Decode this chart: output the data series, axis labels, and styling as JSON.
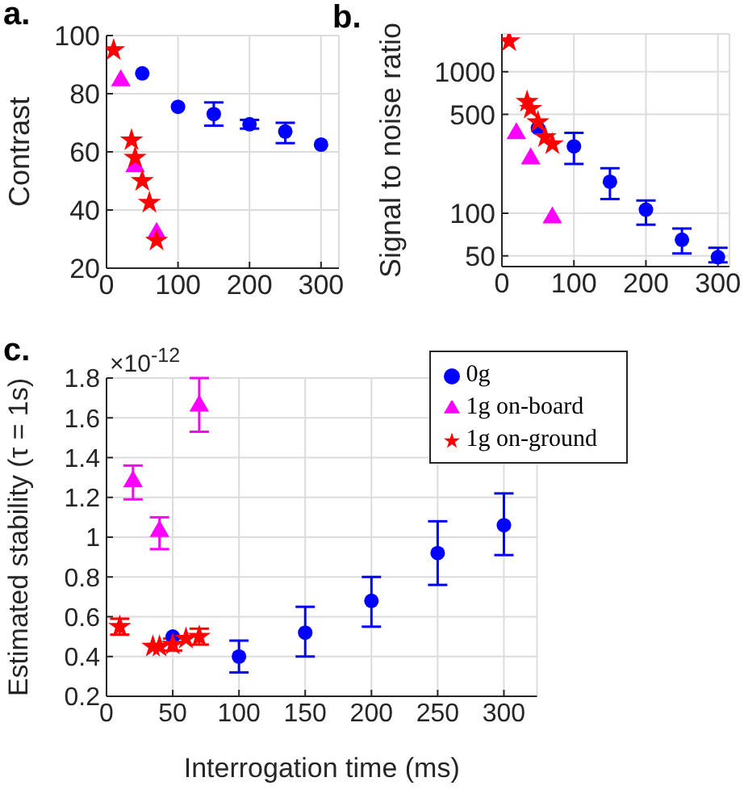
{
  "chart_data": [
    {
      "type": "scatter",
      "title": "a.",
      "ylabel": "Contrast",
      "xlim": [
        0,
        325
      ],
      "xticks": [
        0,
        100,
        200,
        300
      ],
      "ylim": [
        20,
        100
      ],
      "yticks": [
        20,
        40,
        60,
        80,
        100
      ],
      "grid": true,
      "legend": false,
      "series": [
        {
          "color": "#0000ff",
          "marker": "circle",
          "x": [
            50,
            100,
            150,
            200,
            250,
            300
          ],
          "values": [
            87,
            75.5,
            73,
            69.5,
            67,
            62.5
          ],
          "errors": [
            null,
            null,
            [
              69,
              77
            ],
            [
              68,
              71
            ],
            [
              63,
              70
            ],
            null
          ]
        },
        {
          "color": "#ff00ff",
          "marker": "triangle",
          "x": [
            20,
            40,
            70
          ],
          "values": [
            84.5,
            55,
            32
          ]
        },
        {
          "color": "#ff0000",
          "marker": "star",
          "x": [
            10,
            35,
            40,
            50,
            60,
            70
          ],
          "values": [
            95,
            64,
            58,
            50,
            42.5,
            29.5
          ]
        }
      ]
    },
    {
      "type": "scatter",
      "title": "b.",
      "ylabel": "Signal to noise ratio",
      "xlim": [
        0,
        316
      ],
      "xticks": [
        0,
        100,
        200,
        300
      ],
      "ylim": [
        42,
        1850
      ],
      "yticks": [
        50,
        100,
        500,
        1000
      ],
      "log": "y",
      "grid": true,
      "legend": false,
      "series": [
        {
          "color": "#0000ff",
          "marker": "circle",
          "x": [
            50,
            100,
            150,
            200,
            250,
            300
          ],
          "values": [
            400,
            297,
            167,
            106,
            65,
            49
          ],
          "errors": [
            null,
            [
              223,
              370
            ],
            [
              126,
              208
            ],
            [
              83,
              123
            ],
            [
              52,
              78
            ],
            [
              45,
              57
            ]
          ]
        },
        {
          "color": "#ff00ff",
          "marker": "triangle",
          "x": [
            20,
            40,
            70
          ],
          "values": [
            366,
            243,
            93
          ]
        },
        {
          "color": "#ff0000",
          "marker": "star",
          "x": [
            10,
            35,
            40,
            50,
            60,
            70
          ],
          "values": [
            1645,
            614,
            548,
            440,
            345,
            308
          ]
        }
      ]
    },
    {
      "type": "scatter",
      "title": "c.",
      "xlabel": "Interrogation time (ms)",
      "ylabel": "Estimated stability (τ = 1s)",
      "annotations": [
        "×10$^{-12}$"
      ],
      "xlim": [
        0,
        325
      ],
      "xticks": [
        0,
        50,
        100,
        150,
        200,
        250,
        300
      ],
      "ylim": [
        0.2,
        1.8
      ],
      "yticks": [
        {
          "value": 0.2,
          "label": "0.2"
        },
        {
          "value": 0.4,
          "label": "0.4"
        },
        {
          "value": 0.6,
          "label": "0.6"
        },
        {
          "value": 0.8,
          "label": "0.8"
        },
        1,
        {
          "value": 1.2,
          "label": "1.2"
        },
        {
          "value": 1.4,
          "label": "1.4"
        },
        {
          "value": 1.6,
          "label": "1.6"
        },
        {
          "value": 1.8,
          "label": "1.8"
        }
      ],
      "grid": true,
      "legend": "top right",
      "series": [
        {
          "name": "0g",
          "color": "#0000ff",
          "marker": "circle",
          "x": [
            50,
            100,
            150,
            200,
            250,
            300
          ],
          "values": [
            0.5,
            0.4,
            0.52,
            0.68,
            0.92,
            1.06
          ],
          "errors": [
            null,
            [
              0.32,
              0.48
            ],
            [
              0.4,
              0.65
            ],
            [
              0.55,
              0.8
            ],
            [
              0.76,
              1.08
            ],
            [
              0.91,
              1.22
            ]
          ]
        },
        {
          "name": "1g on-board",
          "color": "#ff00ff",
          "marker": "triangle",
          "x": [
            20,
            40,
            70
          ],
          "values": [
            1.28,
            1.03,
            1.66
          ],
          "errors": [
            [
              1.19,
              1.36
            ],
            [
              0.94,
              1.1
            ],
            [
              1.53,
              1.8
            ]
          ]
        },
        {
          "name": "1g on-ground",
          "color": "#ff0000",
          "marker": "star",
          "x": [
            10,
            35,
            40,
            50,
            60,
            70
          ],
          "values": [
            0.55,
            0.45,
            0.45,
            0.46,
            0.49,
            0.5
          ],
          "errors": [
            [
              0.51,
              0.59
            ],
            null,
            null,
            [
              0.43,
              0.49
            ],
            null,
            [
              0.46,
              0.54
            ]
          ]
        }
      ]
    }
  ]
}
